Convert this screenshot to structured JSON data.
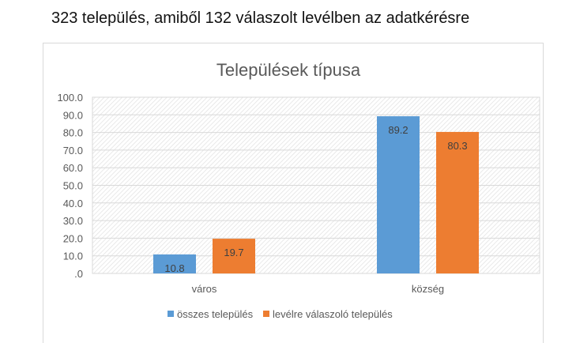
{
  "heading": "323 település, amiből 132 válaszolt levélben az adatkérésre",
  "chart_data": {
    "type": "bar",
    "title": "Települések típusa",
    "categories": [
      "város",
      "község"
    ],
    "series": [
      {
        "name": "összes település",
        "values": [
          10.8,
          89.2
        ],
        "color": "#5B9BD5"
      },
      {
        "name": "levélre válaszoló település",
        "values": [
          19.7,
          80.3
        ],
        "color": "#ED7D31"
      }
    ],
    "ylim": [
      0,
      100
    ],
    "yticks": [
      ".0",
      "10.0",
      "20.0",
      "30.0",
      "40.0",
      "50.0",
      "60.0",
      "70.0",
      "80.0",
      "90.0",
      "100.0"
    ],
    "grid": true,
    "legend": "bottom",
    "data_labels": true
  }
}
